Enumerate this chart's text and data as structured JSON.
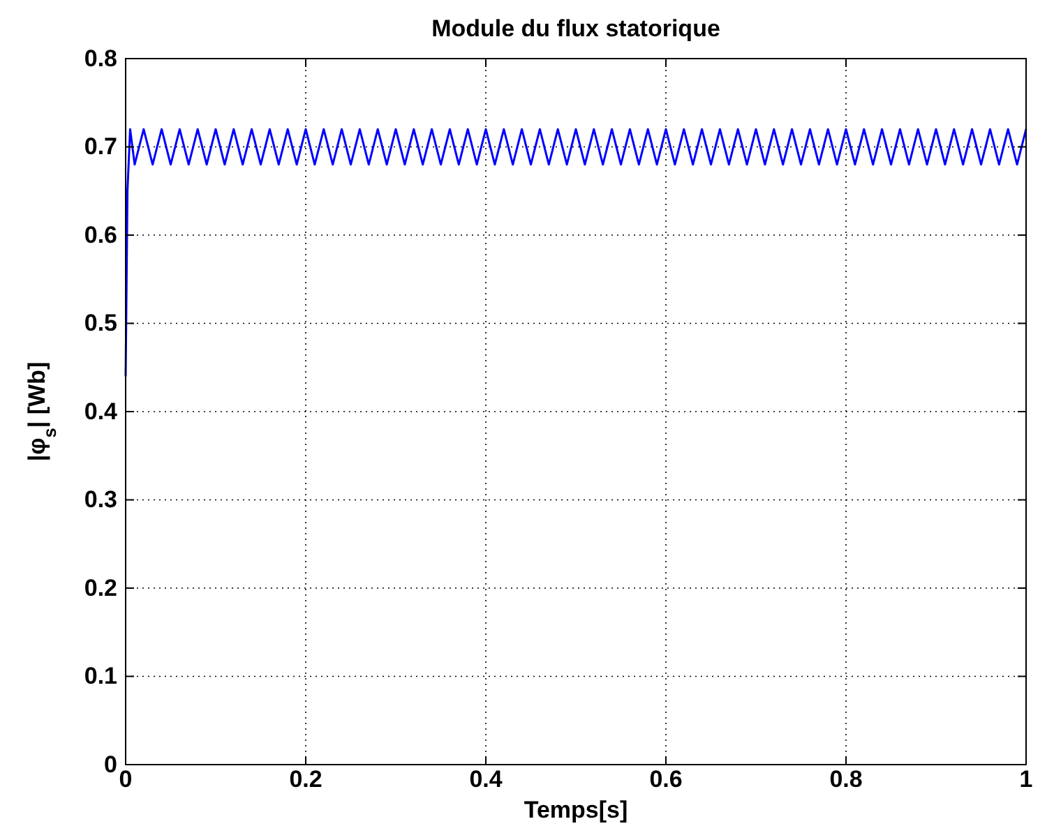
{
  "chart_data": {
    "type": "line",
    "title": "Module du flux statorique",
    "xlabel": "Temps[s]",
    "ylabel": "|φ$_{s}$|  [Wb]",
    "xlim": [
      0,
      1
    ],
    "ylim": [
      0,
      0.8
    ],
    "xticks": [
      0,
      0.2,
      0.4,
      0.6,
      0.8,
      1
    ],
    "yticks": [
      0,
      0.1,
      0.2,
      0.3,
      0.4,
      0.5,
      0.6,
      0.7,
      0.8
    ],
    "grid": true,
    "line_style": "solid",
    "marker": "none",
    "series": [
      {
        "color": "#0000ff",
        "x": [
          0,
          0.002,
          0.005,
          0.01,
          0.02,
          0.03,
          0.04,
          0.05,
          0.06,
          0.07,
          0.08,
          0.09,
          0.1,
          0.11,
          0.12,
          0.13,
          0.14,
          0.15,
          0.16,
          0.17,
          0.18,
          0.19,
          0.2,
          0.21,
          0.22,
          0.23,
          0.24,
          0.25,
          0.26,
          0.27,
          0.28,
          0.29,
          0.3,
          0.31,
          0.32,
          0.33,
          0.34,
          0.35,
          0.36,
          0.37,
          0.38,
          0.39,
          0.4,
          0.41,
          0.42,
          0.43,
          0.44,
          0.45,
          0.46,
          0.47,
          0.48,
          0.49,
          0.5,
          0.51,
          0.52,
          0.53,
          0.54,
          0.55,
          0.56,
          0.57,
          0.58,
          0.59,
          0.6,
          0.61,
          0.62,
          0.63,
          0.64,
          0.65,
          0.66,
          0.67,
          0.68,
          0.69,
          0.7,
          0.71,
          0.72,
          0.73,
          0.74,
          0.75,
          0.76,
          0.77,
          0.78,
          0.79,
          0.8,
          0.81,
          0.82,
          0.83,
          0.84,
          0.85,
          0.86,
          0.87,
          0.88,
          0.89,
          0.9,
          0.91,
          0.92,
          0.93,
          0.94,
          0.95,
          0.96,
          0.97,
          0.98,
          0.99,
          1
        ],
        "values": [
          0.44,
          0.65,
          0.72,
          0.68,
          0.72,
          0.68,
          0.72,
          0.68,
          0.72,
          0.68,
          0.72,
          0.68,
          0.72,
          0.68,
          0.72,
          0.68,
          0.72,
          0.68,
          0.72,
          0.68,
          0.72,
          0.68,
          0.72,
          0.68,
          0.72,
          0.68,
          0.72,
          0.68,
          0.72,
          0.68,
          0.72,
          0.68,
          0.72,
          0.68,
          0.72,
          0.68,
          0.72,
          0.68,
          0.72,
          0.68,
          0.72,
          0.68,
          0.72,
          0.68,
          0.72,
          0.68,
          0.72,
          0.68,
          0.72,
          0.68,
          0.72,
          0.68,
          0.72,
          0.68,
          0.72,
          0.68,
          0.72,
          0.68,
          0.72,
          0.68,
          0.72,
          0.68,
          0.72,
          0.68,
          0.72,
          0.68,
          0.72,
          0.68,
          0.72,
          0.68,
          0.72,
          0.68,
          0.72,
          0.68,
          0.72,
          0.68,
          0.72,
          0.68,
          0.72,
          0.68,
          0.72,
          0.68,
          0.72,
          0.68,
          0.72,
          0.68,
          0.72,
          0.68,
          0.72,
          0.68,
          0.72,
          0.68,
          0.72,
          0.68,
          0.72,
          0.68,
          0.72,
          0.68,
          0.72,
          0.68,
          0.72,
          0.68,
          0.72
        ]
      }
    ]
  }
}
